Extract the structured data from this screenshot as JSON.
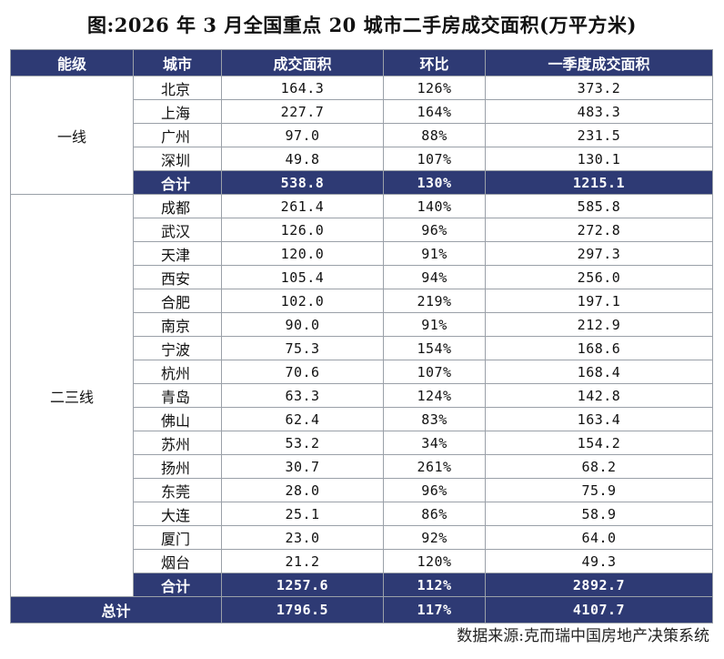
{
  "title": "图:2026 年 3 月全国重点 20 城市二手房成交面积(万平方米)",
  "headers": [
    "能级",
    "城市",
    "成交面积",
    "环比",
    "一季度成交面积"
  ],
  "tier1": {
    "label": "一线",
    "rows": [
      {
        "city": "北京",
        "area": "164.3",
        "mom": "126%",
        "q1": "373.2"
      },
      {
        "city": "上海",
        "area": "227.7",
        "mom": "164%",
        "q1": "483.3"
      },
      {
        "city": "广州",
        "area": "97.0",
        "mom": "88%",
        "q1": "231.5"
      },
      {
        "city": "深圳",
        "area": "49.8",
        "mom": "107%",
        "q1": "130.1"
      }
    ],
    "subtotal": {
      "label": "合计",
      "area": "538.8",
      "mom": "130%",
      "q1": "1215.1"
    }
  },
  "tier23": {
    "label": "二三线",
    "rows": [
      {
        "city": "成都",
        "area": "261.4",
        "mom": "140%",
        "q1": "585.8"
      },
      {
        "city": "武汉",
        "area": "126.0",
        "mom": "96%",
        "q1": "272.8"
      },
      {
        "city": "天津",
        "area": "120.0",
        "mom": "91%",
        "q1": "297.3"
      },
      {
        "city": "西安",
        "area": "105.4",
        "mom": "94%",
        "q1": "256.0"
      },
      {
        "city": "合肥",
        "area": "102.0",
        "mom": "219%",
        "q1": "197.1"
      },
      {
        "city": "南京",
        "area": "90.0",
        "mom": "91%",
        "q1": "212.9"
      },
      {
        "city": "宁波",
        "area": "75.3",
        "mom": "154%",
        "q1": "168.6"
      },
      {
        "city": "杭州",
        "area": "70.6",
        "mom": "107%",
        "q1": "168.4"
      },
      {
        "city": "青岛",
        "area": "63.3",
        "mom": "124%",
        "q1": "142.8"
      },
      {
        "city": "佛山",
        "area": "62.4",
        "mom": "83%",
        "q1": "163.4"
      },
      {
        "city": "苏州",
        "area": "53.2",
        "mom": "34%",
        "q1": "154.2"
      },
      {
        "city": "扬州",
        "area": "30.7",
        "mom": "261%",
        "q1": "68.2"
      },
      {
        "city": "东莞",
        "area": "28.0",
        "mom": "96%",
        "q1": "75.9"
      },
      {
        "city": "大连",
        "area": "25.1",
        "mom": "86%",
        "q1": "58.9"
      },
      {
        "city": "厦门",
        "area": "23.0",
        "mom": "92%",
        "q1": "64.0"
      },
      {
        "city": "烟台",
        "area": "21.2",
        "mom": "120%",
        "q1": "49.3"
      }
    ],
    "subtotal": {
      "label": "合计",
      "area": "1257.6",
      "mom": "112%",
      "q1": "2892.7"
    }
  },
  "total": {
    "label": "总计",
    "area": "1796.5",
    "mom": "117%",
    "q1": "4107.7"
  },
  "source": "数据来源:克而瑞中国房地产决策系统",
  "colors": {
    "header_bg": "#2e3a74",
    "header_text": "#ffffff",
    "border": "#9aa0a8"
  }
}
